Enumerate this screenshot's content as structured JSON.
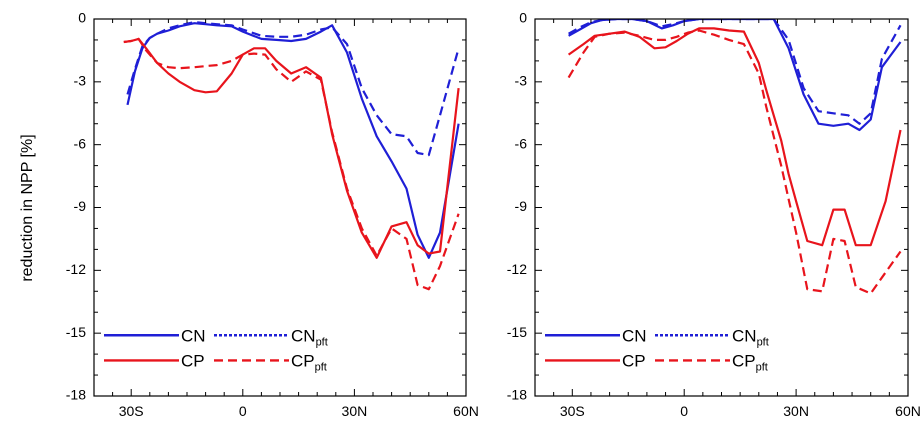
{
  "chart_data": [
    {
      "type": "line",
      "panel": "left",
      "ylabel": "reduction in NPP [%]",
      "xlim": [
        -40,
        60
      ],
      "ylim": [
        -18,
        0
      ],
      "x_ticks": [
        {
          "v": -30,
          "label": "30S"
        },
        {
          "v": 0,
          "label": "0"
        },
        {
          "v": 30,
          "label": "30N"
        },
        {
          "v": 60,
          "label": "60N"
        }
      ],
      "y_ticks": [
        {
          "v": 0,
          "label": "0"
        },
        {
          "v": -3,
          "label": "-3"
        },
        {
          "v": -6,
          "label": "-6"
        },
        {
          "v": -9,
          "label": "-9"
        },
        {
          "v": -12,
          "label": "-12"
        },
        {
          "v": -15,
          "label": "-15"
        },
        {
          "v": -18,
          "label": "-18"
        }
      ],
      "legend": {
        "placement": "bottom-left",
        "entries": [
          {
            "label": "CN",
            "sub": "",
            "color": "#1f1fd6",
            "style": "solid"
          },
          {
            "label": "CN",
            "sub": "pft",
            "color": "#1f1fd6",
            "style": "dotted"
          },
          {
            "label": "CP",
            "sub": "",
            "color": "#e8141c",
            "style": "solid"
          },
          {
            "label": "CP",
            "sub": "pft",
            "color": "#e8141c",
            "style": "dashed"
          }
        ]
      },
      "series": [
        {
          "name": "CN",
          "color": "#1f1fd6",
          "style": "solid",
          "x": [
            -31,
            -29,
            -27,
            -25,
            -23,
            -20,
            -17,
            -13,
            -10,
            -7,
            -3,
            0,
            5,
            9,
            13,
            17,
            21,
            24,
            28,
            32,
            36,
            40,
            44,
            47,
            50,
            53,
            58
          ],
          "y": [
            -4.1,
            -2.5,
            -1.4,
            -0.9,
            -0.7,
            -0.55,
            -0.35,
            -0.2,
            -0.25,
            -0.3,
            -0.35,
            -0.6,
            -0.95,
            -1.0,
            -1.05,
            -0.95,
            -0.6,
            -0.3,
            -1.6,
            -3.8,
            -5.6,
            -6.8,
            -8.1,
            -10.3,
            -11.4,
            -10.2,
            -5.0
          ]
        },
        {
          "name": "CN pft",
          "color": "#1f1fd6",
          "style": "dashed",
          "x": [
            -31,
            -29,
            -27,
            -25,
            -23,
            -20,
            -17,
            -13,
            -10,
            -7,
            -3,
            0,
            5,
            9,
            13,
            17,
            21,
            24,
            28,
            32,
            36,
            40,
            44,
            47,
            50,
            53,
            58
          ],
          "y": [
            -3.6,
            -2.4,
            -1.3,
            -0.9,
            -0.7,
            -0.45,
            -0.3,
            -0.15,
            -0.2,
            -0.25,
            -0.3,
            -0.5,
            -0.8,
            -0.85,
            -0.85,
            -0.75,
            -0.5,
            -0.4,
            -1.2,
            -3.3,
            -4.6,
            -5.5,
            -5.6,
            -6.4,
            -6.5,
            -4.6,
            -1.4
          ]
        },
        {
          "name": "CP",
          "color": "#e8141c",
          "style": "solid",
          "x": [
            -32,
            -30,
            -28,
            -26,
            -23,
            -20,
            -17,
            -13,
            -10,
            -7,
            -3,
            0,
            3,
            6,
            9,
            13,
            17,
            21,
            24,
            28,
            32,
            36,
            40,
            44,
            47,
            50,
            53,
            58
          ],
          "y": [
            -1.1,
            -1.05,
            -0.95,
            -1.4,
            -2.1,
            -2.6,
            -3.0,
            -3.4,
            -3.5,
            -3.45,
            -2.6,
            -1.7,
            -1.4,
            -1.4,
            -2.0,
            -2.6,
            -2.3,
            -2.8,
            -5.5,
            -8.2,
            -10.2,
            -11.4,
            -9.9,
            -9.7,
            -10.8,
            -11.2,
            -11.1,
            -3.3
          ]
        },
        {
          "name": "CP pft",
          "color": "#e8141c",
          "style": "dashed",
          "x": [
            -32,
            -30,
            -28,
            -26,
            -23,
            -20,
            -17,
            -13,
            -10,
            -7,
            -3,
            0,
            3,
            6,
            9,
            13,
            17,
            21,
            24,
            28,
            32,
            36,
            40,
            44,
            47,
            50,
            53,
            58
          ],
          "y": [
            -1.1,
            -1.05,
            -0.95,
            -1.5,
            -2.1,
            -2.3,
            -2.35,
            -2.3,
            -2.25,
            -2.2,
            -2.0,
            -1.7,
            -1.65,
            -1.7,
            -2.4,
            -3.0,
            -2.5,
            -2.9,
            -5.4,
            -8.1,
            -10.0,
            -11.3,
            -10.0,
            -10.5,
            -12.7,
            -12.9,
            -11.8,
            -9.3
          ]
        }
      ]
    },
    {
      "type": "line",
      "panel": "right",
      "ylabel": "",
      "xlim": [
        -40,
        60
      ],
      "ylim": [
        -18,
        0
      ],
      "x_ticks": [
        {
          "v": -30,
          "label": "30S"
        },
        {
          "v": 0,
          "label": "0"
        },
        {
          "v": 30,
          "label": "30N"
        },
        {
          "v": 60,
          "label": "60N"
        }
      ],
      "y_ticks": [
        {
          "v": 0,
          "label": "0"
        },
        {
          "v": -3,
          "label": "-3"
        },
        {
          "v": -6,
          "label": "-6"
        },
        {
          "v": -9,
          "label": "-9"
        },
        {
          "v": -12,
          "label": "-12"
        },
        {
          "v": -15,
          "label": "-15"
        },
        {
          "v": -18,
          "label": "-18"
        }
      ],
      "legend": {
        "placement": "bottom-left",
        "entries": [
          {
            "label": "CN",
            "sub": "",
            "color": "#1f1fd6",
            "style": "solid"
          },
          {
            "label": "CN",
            "sub": "pft",
            "color": "#1f1fd6",
            "style": "dotted"
          },
          {
            "label": "CP",
            "sub": "",
            "color": "#e8141c",
            "style": "solid"
          },
          {
            "label": "CP",
            "sub": "pft",
            "color": "#e8141c",
            "style": "dashed"
          }
        ]
      },
      "series": [
        {
          "name": "CN",
          "color": "#1f1fd6",
          "style": "solid",
          "x": [
            -31,
            -28,
            -25,
            -22,
            -18,
            -14,
            -10,
            -6,
            -3,
            0,
            4,
            8,
            12,
            16,
            20,
            24,
            28,
            32,
            36,
            40,
            44,
            47,
            50,
            53,
            58
          ],
          "y": [
            -0.8,
            -0.5,
            -0.2,
            -0.05,
            0.0,
            0.0,
            -0.1,
            -0.45,
            -0.3,
            -0.1,
            0.0,
            0.0,
            0.0,
            0.0,
            0.0,
            0.0,
            -1.4,
            -3.6,
            -5.0,
            -5.1,
            -5.0,
            -5.3,
            -4.8,
            -2.3,
            -1.1
          ]
        },
        {
          "name": "CN pft",
          "color": "#1f1fd6",
          "style": "dashed",
          "x": [
            -31,
            -28,
            -25,
            -22,
            -18,
            -14,
            -10,
            -6,
            -3,
            0,
            4,
            8,
            12,
            16,
            20,
            24,
            28,
            32,
            36,
            40,
            44,
            47,
            50,
            53,
            58
          ],
          "y": [
            -0.7,
            -0.4,
            -0.15,
            -0.05,
            0.0,
            0.0,
            -0.1,
            -0.35,
            -0.25,
            -0.1,
            0.0,
            0.0,
            0.0,
            0.0,
            0.0,
            0.0,
            -1.0,
            -3.3,
            -4.4,
            -4.5,
            -4.6,
            -5.0,
            -4.5,
            -1.9,
            -0.3
          ]
        },
        {
          "name": "CP",
          "color": "#e8141c",
          "style": "solid",
          "x": [
            -31,
            -27,
            -24,
            -20,
            -16,
            -12,
            -8,
            -5,
            -2,
            1,
            4,
            8,
            12,
            16,
            20,
            22,
            24,
            26,
            28,
            30,
            33,
            37,
            40,
            43,
            46,
            50,
            54,
            58
          ],
          "y": [
            -1.7,
            -1.2,
            -0.8,
            -0.7,
            -0.6,
            -0.85,
            -1.4,
            -1.35,
            -1.05,
            -0.7,
            -0.45,
            -0.45,
            -0.55,
            -0.6,
            -2.1,
            -3.4,
            -4.6,
            -5.8,
            -7.4,
            -8.7,
            -10.6,
            -10.8,
            -9.1,
            -9.1,
            -10.8,
            -10.8,
            -8.7,
            -5.3
          ]
        },
        {
          "name": "CP pft",
          "color": "#e8141c",
          "style": "dashed",
          "x": [
            -31,
            -27,
            -24,
            -20,
            -16,
            -12,
            -8,
            -5,
            -2,
            1,
            4,
            8,
            12,
            16,
            20,
            22,
            24,
            26,
            28,
            30,
            33,
            37,
            40,
            43,
            46,
            50,
            54,
            58
          ],
          "y": [
            -2.8,
            -1.6,
            -0.85,
            -0.7,
            -0.65,
            -0.8,
            -1.0,
            -1.0,
            -0.85,
            -0.65,
            -0.55,
            -0.75,
            -1.0,
            -1.2,
            -2.6,
            -4.2,
            -5.6,
            -7.0,
            -8.6,
            -10.2,
            -12.9,
            -13.0,
            -10.5,
            -10.6,
            -12.8,
            -13.1,
            -12.1,
            -11.1
          ]
        }
      ]
    }
  ]
}
